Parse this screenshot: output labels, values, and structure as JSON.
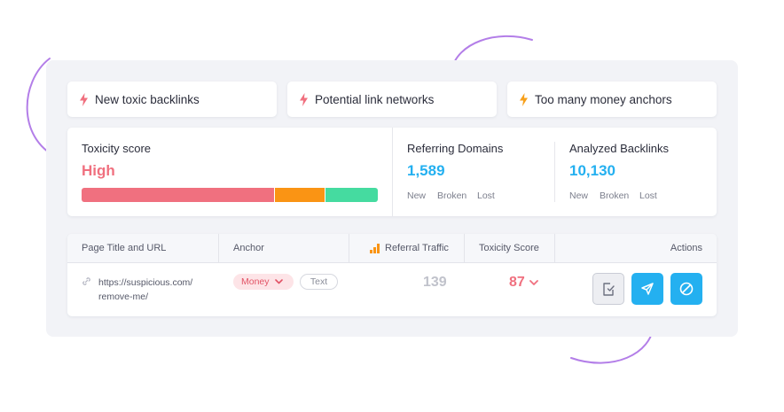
{
  "alerts": [
    {
      "label": "New toxic backlinks",
      "icon": "lightning-icon",
      "color": "#f0707f"
    },
    {
      "label": "Potential link networks",
      "icon": "lightning-icon",
      "color": "#f0707f"
    },
    {
      "label": "Too many money anchors",
      "icon": "lightning-icon",
      "color": "#f7a01b"
    }
  ],
  "toxicity": {
    "label": "Toxicity score",
    "value": "High",
    "value_color": "#f0707f",
    "bar_segments": [
      {
        "share": 0.65,
        "color": "#f0707f"
      },
      {
        "share": 0.17,
        "color": "#fa9414"
      },
      {
        "share": 0.18,
        "color": "#45dba0"
      }
    ]
  },
  "referring": {
    "label": "Referring Domains",
    "value": "1,589",
    "links": [
      "New",
      "Broken",
      "Lost"
    ]
  },
  "analyzed": {
    "label": "Analyzed Backlinks",
    "value": "10,130",
    "links": [
      "New",
      "Broken",
      "Lost"
    ]
  },
  "table": {
    "headers": {
      "page": "Page Title and URL",
      "anchor": "Anchor",
      "traffic": "Referral Traffic",
      "toxicity": "Toxicity Score",
      "actions": "Actions"
    },
    "row": {
      "url_line1": "https://suspicious.com/",
      "url_line2": "remove-me/",
      "anchor_tag": "Money",
      "text_tag": "Text",
      "traffic": "139",
      "toxicity": "87"
    }
  },
  "colors": {
    "accent_blue": "#24b0f0",
    "toxic_red": "#f0707f",
    "curve_purple": "#b37ee8"
  }
}
